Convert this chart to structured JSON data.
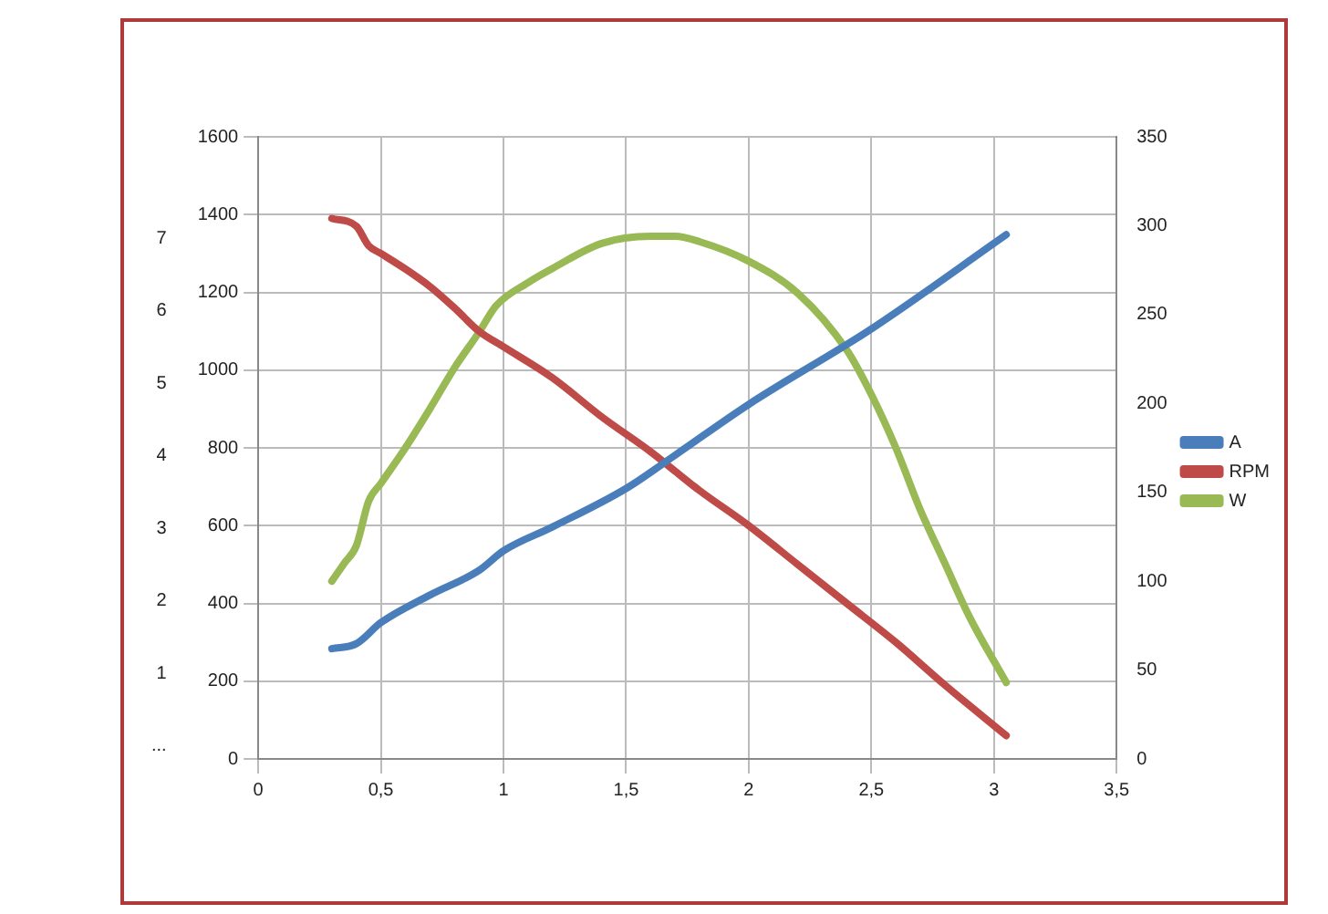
{
  "chart_data": {
    "type": "line",
    "legend": "right",
    "grid": true,
    "marker": "none",
    "line_style": "solid",
    "xlim": [
      0,
      3.5
    ],
    "xticks": [
      0,
      {
        "value": 0.5,
        "label": "0,5"
      },
      1,
      {
        "value": 1.5,
        "label": "1,5"
      },
      2,
      {
        "value": 2.5,
        "label": "2,5"
      },
      3,
      {
        "value": 3.5,
        "label": "3,5"
      }
    ],
    "ylim": [
      0,
      1600
    ],
    "yticks": [
      0,
      200,
      400,
      600,
      800,
      1000,
      1200,
      1400,
      1600
    ],
    "y2lim": [
      0,
      350
    ],
    "y2ticks": [
      0,
      50,
      100,
      150,
      200,
      250,
      300,
      350
    ],
    "y3lim": [
      -0.18,
      8.4
    ],
    "y3ticks": [
      {
        "value": 0,
        "label": "..."
      },
      1,
      2,
      3,
      4,
      5,
      6,
      7
    ],
    "series": [
      {
        "name": "A",
        "color": "#4a7ebb",
        "axis": "y3",
        "x": [
          0.3,
          0.4,
          0.5,
          0.7,
          0.9,
          1.0,
          1.2,
          1.5,
          1.7,
          2.0,
          2.5,
          3.05
        ],
        "values": [
          1.34,
          1.41,
          1.7,
          2.08,
          2.42,
          2.69,
          3.02,
          3.55,
          4.01,
          4.71,
          5.75,
          7.05
        ]
      },
      {
        "name": "RPM",
        "color": "#be4b48",
        "x": [
          0.3,
          0.4,
          0.45,
          0.5,
          0.6,
          0.7,
          0.8,
          0.9,
          1.0,
          1.2,
          1.4,
          1.6,
          1.7,
          1.8,
          2.0,
          2.2,
          2.4,
          2.6,
          2.8,
          3.05
        ],
        "values": [
          1390,
          1370,
          1320,
          1300,
          1260,
          1215,
          1160,
          1100,
          1060,
          980,
          880,
          790,
          740,
          690,
          600,
          500,
          400,
          300,
          190,
          60
        ]
      },
      {
        "name": "W",
        "color": "#98b954",
        "axis": "y2",
        "x": [
          0.3,
          0.35,
          0.4,
          0.45,
          0.5,
          0.6,
          0.7,
          0.8,
          0.9,
          0.97,
          1.1,
          1.2,
          1.4,
          1.6,
          1.7,
          1.8,
          2.0,
          2.2,
          2.4,
          2.5,
          2.6,
          2.7,
          2.8,
          2.9,
          3.05
        ],
        "values": [
          100,
          110,
          120,
          145,
          155,
          175,
          197,
          220,
          240,
          255,
          268,
          276,
          290,
          294,
          294,
          291,
          280,
          262,
          230,
          205,
          175,
          140,
          110,
          80,
          43
        ]
      }
    ]
  }
}
